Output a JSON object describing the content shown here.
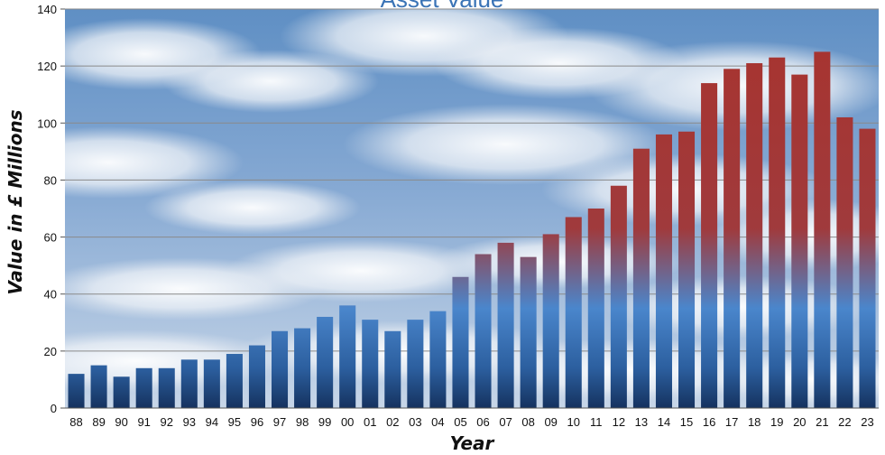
{
  "chart_data": {
    "type": "bar",
    "title": "Asset Value",
    "xlabel": "Year",
    "ylabel": "Value in £ Millions",
    "categories": [
      "88",
      "89",
      "90",
      "91",
      "92",
      "93",
      "94",
      "95",
      "96",
      "97",
      "98",
      "99",
      "00",
      "01",
      "02",
      "03",
      "04",
      "05",
      "06",
      "07",
      "08",
      "09",
      "10",
      "11",
      "12",
      "13",
      "14",
      "15",
      "16",
      "17",
      "18",
      "19",
      "20",
      "21",
      "22",
      "23"
    ],
    "values": [
      12,
      15,
      11,
      14,
      14,
      17,
      17,
      19,
      22,
      27,
      28,
      32,
      36,
      31,
      27,
      31,
      34,
      46,
      54,
      58,
      53,
      61,
      67,
      70,
      78,
      91,
      96,
      97,
      114,
      119,
      121,
      123,
      117,
      125,
      102,
      98
    ],
    "ylim": [
      0,
      140
    ],
    "yticks": [
      0,
      20,
      40,
      60,
      80,
      100,
      120,
      140
    ],
    "grid": true,
    "legend": "none",
    "colors": {
      "bar_top": "#a8332e",
      "bar_mid": "#4a86cc",
      "bar_bottom": "#15325f",
      "title": "#3b74b6"
    }
  }
}
